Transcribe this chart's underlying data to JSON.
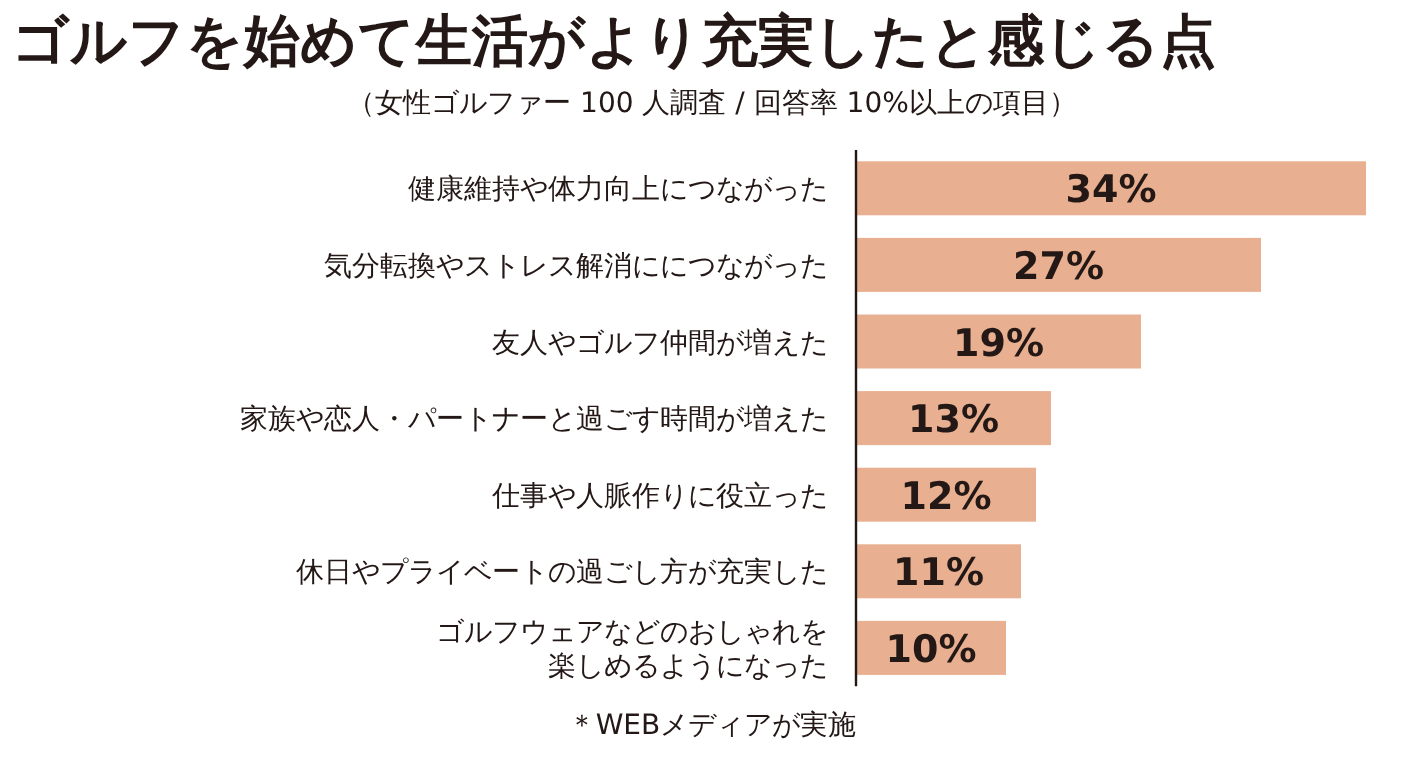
{
  "chart_data": {
    "type": "bar",
    "orientation": "horizontal",
    "title": "ゴルフを始めて生活がより充実したと感じる点",
    "subtitle": "（女性ゴルファー 100 人調査 / 回答率 10%以上の項目）",
    "categories": [
      "健康維持や体力向上につながった",
      "気分転換やストレス解消ににつながった",
      "友人やゴルフ仲間が増えた",
      "家族や恋人・パートナーと過ごす時間が増えた",
      "仕事や人脈作りに役立った",
      "休日やプライベートの過ごし方が充実した",
      "ゴルフウェアなどのおしゃれを楽しめるようになった"
    ],
    "values": [
      34,
      27,
      19,
      13,
      12,
      11,
      10
    ],
    "value_labels": [
      "34%",
      "27%",
      "19%",
      "13%",
      "12%",
      "11%",
      "10%"
    ],
    "color": "#e8b091",
    "annotations": [
      "＊WEBメディアが実施"
    ]
  }
}
